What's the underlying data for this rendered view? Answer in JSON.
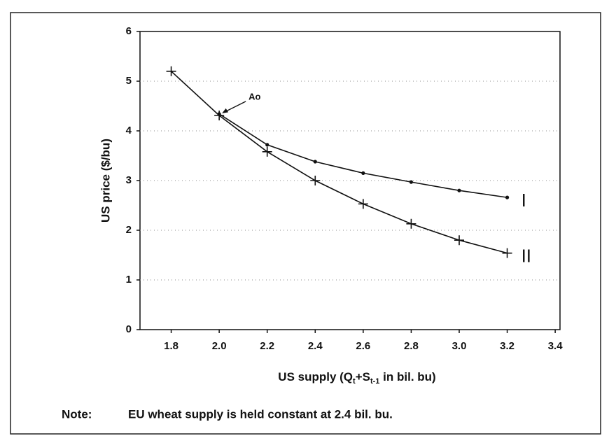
{
  "chart_data": {
    "type": "line",
    "y_label": "US price ($/bu)",
    "x_label": [
      "US supply (Q",
      "t",
      "+S",
      "t-1",
      " in bil. bu)"
    ],
    "annotation": {
      "text": "Ao",
      "x": 2.0,
      "y": 4.34
    },
    "note": {
      "label": "Note:",
      "text": "EU wheat supply is held constant at 2.4 bil. bu."
    },
    "series": [
      {
        "name": "I",
        "marker": "dot",
        "color": "#111",
        "x": [
          2.0,
          2.2,
          2.4,
          2.6,
          2.8,
          3.0,
          3.2
        ],
        "values": [
          4.34,
          3.72,
          3.38,
          3.15,
          2.97,
          2.8,
          2.66
        ]
      },
      {
        "name": "II",
        "marker": "plus",
        "color": "#111",
        "x": [
          1.8,
          2.0,
          2.2,
          2.4,
          2.6,
          2.8,
          3.0,
          3.2
        ],
        "values": [
          5.2,
          4.31,
          3.58,
          3.0,
          2.53,
          2.13,
          1.8,
          1.54
        ]
      }
    ],
    "xlim": [
      1.67,
      3.42
    ],
    "xticks": [
      1.8,
      {
        "value": 2,
        "label": "2.0"
      },
      2.2,
      2.4,
      2.6,
      2.8,
      {
        "value": 3,
        "label": "3.0"
      },
      3.2,
      3.4
    ],
    "ylim": [
      0,
      6
    ],
    "yticks": [
      0,
      1,
      2,
      3,
      4,
      5,
      6
    ],
    "grid": true
  }
}
